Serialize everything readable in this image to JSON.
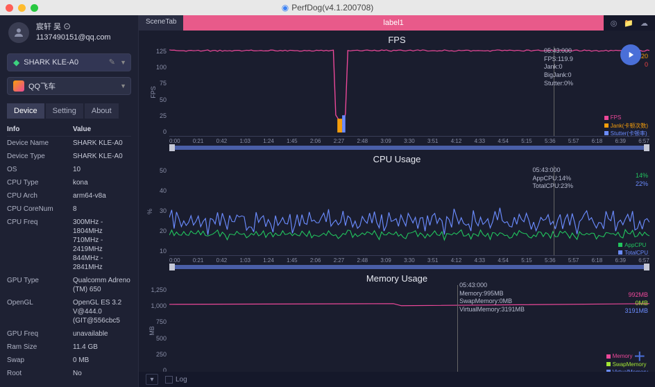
{
  "app": {
    "title": "PerfDog(v4.1.200708)"
  },
  "user": {
    "name": "宸轩 吴 ⊙",
    "email": "1137490151@qq.com"
  },
  "device_dropdown": {
    "label": "SHARK KLE-A0"
  },
  "app_dropdown": {
    "label": "QQ飞车"
  },
  "tabs": {
    "device": "Device",
    "setting": "Setting",
    "about": "About"
  },
  "info": {
    "header_info": "Info",
    "header_value": "Value",
    "rows": [
      {
        "k": "Device Name",
        "v": "SHARK KLE-A0"
      },
      {
        "k": "Device Type",
        "v": "SHARK KLE-A0"
      },
      {
        "k": "OS",
        "v": "10"
      },
      {
        "k": "CPU Type",
        "v": "kona"
      },
      {
        "k": "CPU Arch",
        "v": "arm64-v8a"
      },
      {
        "k": "CPU CoreNum",
        "v": "8"
      },
      {
        "k": "CPU Freq",
        "v": "300MHz - 1804MHz\n710MHz - 2419MHz\n844MHz - 2841MHz"
      },
      {
        "k": "GPU Type",
        "v": "Qualcomm Adreno (TM) 650"
      },
      {
        "k": "OpenGL",
        "v": "OpenGL ES 3.2 V@444.0 (GIT@556cbc5"
      },
      {
        "k": "GPU Freq",
        "v": "unavailable"
      },
      {
        "k": "Ram Size",
        "v": "11.4 GB"
      },
      {
        "k": "Swap",
        "v": "0 MB"
      },
      {
        "k": "Root",
        "v": "No"
      }
    ]
  },
  "topbar": {
    "scene_tab": "SceneTab",
    "label_tab": "label1"
  },
  "xticks": [
    "0:00",
    "0:21",
    "0:42",
    "1:03",
    "1:24",
    "1:45",
    "2:06",
    "2:27",
    "2:48",
    "3:09",
    "3:30",
    "3:51",
    "4:12",
    "4:33",
    "4:54",
    "5:15",
    "5:36",
    "5:57",
    "6:18",
    "6:39",
    "6:57"
  ],
  "fps": {
    "title": "FPS",
    "ylabel": "FPS",
    "yticks": [
      "125",
      "100",
      "75",
      "50",
      "25",
      "0"
    ],
    "stats": {
      "time": "05:43:000",
      "fps": "FPS:119.9",
      "jank": "Jank:0",
      "bigjank": "BigJank:0",
      "stutter": "Stutter:0%"
    },
    "side": {
      "v1": "120",
      "v2": "0",
      "c1": "#f59e0b",
      "c2": "#ef4444"
    },
    "legend": [
      {
        "label": "FPS",
        "color": "#ec4899"
      },
      {
        "label": "Jank(卡顿次数)",
        "color": "#f59e0b"
      },
      {
        "label": "Stutter(卡顿率)",
        "color": "#6b8cff"
      }
    ],
    "line_color": "#ec4899"
  },
  "cpu": {
    "title": "CPU Usage",
    "ylabel": "%",
    "yticks": [
      "50",
      "40",
      "30",
      "20",
      "10"
    ],
    "stats": {
      "time": "05:43:000",
      "app": "AppCPU:14%",
      "total": "TotalCPU:23%"
    },
    "side": {
      "v1": "14%",
      "v2": "22%",
      "c1": "#22c55e",
      "c2": "#6b8cff"
    },
    "legend": [
      {
        "label": "AppCPU",
        "color": "#22c55e"
      },
      {
        "label": "TotalCPU",
        "color": "#6b8cff"
      }
    ],
    "app_color": "#22c55e",
    "total_color": "#6b8cff"
  },
  "mem": {
    "title": "Memory Usage",
    "ylabel": "MB",
    "yticks": [
      "1,250",
      "1,000",
      "750",
      "500",
      "250",
      "0"
    ],
    "stats": {
      "time": "05:43:000",
      "memory": "Memory:995MB",
      "swap": "SwapMemory:0MB",
      "virtual": "VirtualMemory:3191MB"
    },
    "side": {
      "v1": "992MB",
      "v2": "0MB",
      "v3": "3191MB",
      "c1": "#ec4899",
      "c2": "#a3e635",
      "c3": "#6b8cff"
    },
    "legend": [
      {
        "label": "Memory",
        "color": "#ec4899"
      },
      {
        "label": "SwapMemory",
        "color": "#a3e635"
      },
      {
        "label": "VirtualMemory",
        "color": "#6b8cff"
      }
    ],
    "mem_color": "#ec4899",
    "swap_color": "#a3e635",
    "virt_color": "#6b8cff"
  },
  "bottom": {
    "log": "Log"
  }
}
